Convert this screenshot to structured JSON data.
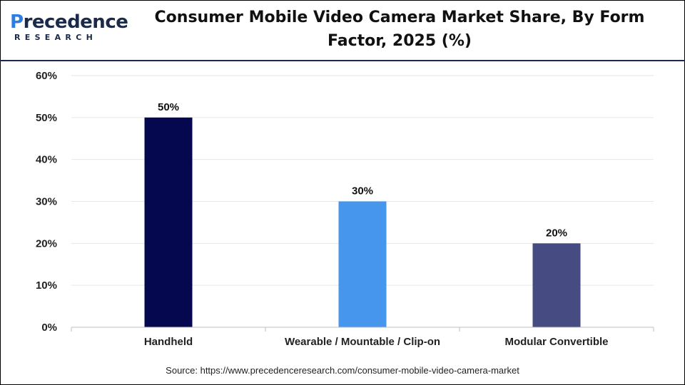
{
  "brand": {
    "name_initial": "P",
    "name_rest": "recedence",
    "tagline": "RESEARCH",
    "color": "#1b2a4a",
    "accent": "#2e7de0"
  },
  "chart_data": {
    "type": "bar",
    "title": "Consumer Mobile Video Camera Market Share, By Form Factor, 2025 (%)",
    "categories": [
      "Handheld",
      "Wearable / Mountable / Clip-on",
      "Modular Convertible"
    ],
    "values": [
      50,
      30,
      20
    ],
    "data_labels": [
      "50%",
      "30%",
      "20%"
    ],
    "colors": [
      "#06084f",
      "#4796ee",
      "#464b82"
    ],
    "y_ticks": [
      0,
      10,
      20,
      30,
      40,
      50,
      60
    ],
    "y_tick_labels": [
      "0%",
      "10%",
      "20%",
      "30%",
      "40%",
      "50%",
      "60%"
    ],
    "ylim": [
      0,
      60
    ],
    "grid": true,
    "legend": "none"
  },
  "source": "Source: https://www.precedenceresearch.com/consumer-mobile-video-camera-market"
}
